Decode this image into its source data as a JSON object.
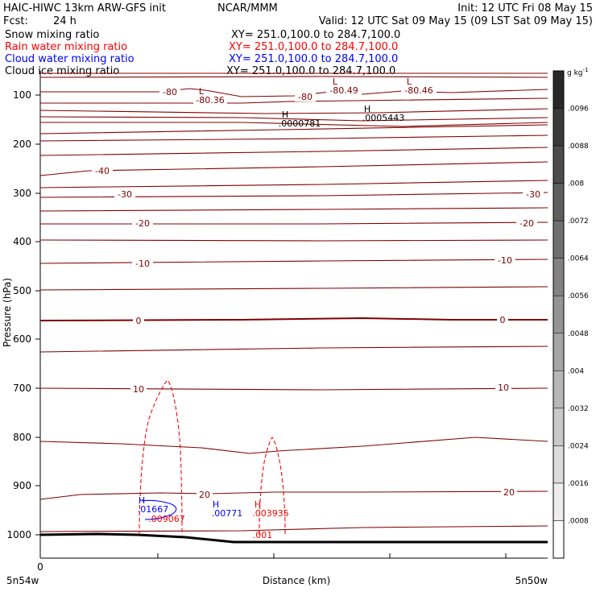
{
  "header": {
    "left_line1": "HAIC-HIWC 13km ARW-GFS init",
    "org": "NCAR/MMM",
    "init": "Init: 12 UTC Fri 08 May 15",
    "fcst_label": "Fcst:",
    "fcst_value": "24 h",
    "valid": "Valid: 12 UTC Sat 09 May 15 (09 LST Sat 09 May 15)",
    "fields": [
      {
        "label": "Snow mixing ratio",
        "xy": "XY= 251.0,100.0 to 284.7,100.0",
        "color": "#000000"
      },
      {
        "label": "Rain water mixing ratio",
        "xy": "XY= 251.0,100.0 to 284.7,100.0",
        "color": "#ff0000"
      },
      {
        "label": "Cloud water mixing ratio",
        "xy": "XY= 251.0,100.0 to 284.7,100.0",
        "color": "#0000ff"
      },
      {
        "label": "Cloud ice mixing ratio",
        "xy": "XY= 251.0,100.0 to 284.7,100.0",
        "color": "#000000"
      }
    ]
  },
  "chart_data": {
    "type": "contour-cross-section",
    "ylabel": "Pressure (hPa)",
    "xlabel": "Distance (km)",
    "y_ticks": [
      100,
      200,
      300,
      400,
      500,
      600,
      700,
      800,
      900,
      1000
    ],
    "ylim": [
      1050,
      80
    ],
    "x_tick_label": "0",
    "x_left_label": "5n54w",
    "x_right_label": "5n50w",
    "temperature_contours": [
      {
        "value": -80,
        "pressure": 100
      },
      {
        "value": -40,
        "pressure": 215
      },
      {
        "value": -30,
        "pressure": 300
      },
      {
        "value": -20,
        "pressure": 377
      },
      {
        "value": -10,
        "pressure": 455
      },
      {
        "value": 0,
        "pressure": 560
      },
      {
        "value": 10,
        "pressure": 680
      },
      {
        "value": 20,
        "pressure": 930
      }
    ],
    "temperature_labels": [
      "-80",
      "-80",
      "-80.36",
      "-80.49",
      "-80.46",
      "-40",
      "-30",
      "-30",
      "-20",
      "-20",
      "-10",
      "-10",
      "0",
      "0",
      "10",
      "10",
      "20",
      "20"
    ],
    "extrema": [
      {
        "type": "L",
        "value": "-80.36",
        "color": "#8b0000"
      },
      {
        "type": "L",
        "value": "-80.49",
        "color": "#8b0000"
      },
      {
        "type": "L",
        "value": "-80.46",
        "color": "#8b0000"
      },
      {
        "type": "H",
        "value": ".0000781",
        "color": "#000000"
      },
      {
        "type": "H",
        "value": ".0005443",
        "color": "#000000"
      },
      {
        "type": "H",
        "value": ".01667",
        "color": "#0000ff"
      },
      {
        "type": "H",
        "value": ".00771",
        "color": "#0000ff"
      },
      {
        "type": "H",
        "value": ".009067",
        "color": "#ff0000"
      },
      {
        "type": "H",
        "value": ".003935",
        "color": "#ff0000"
      }
    ],
    "rain_contour_label": ".001",
    "colorbar": {
      "unit": "g kg",
      "unit_exp": "-1",
      "labels": [
        ".0096",
        ".0088",
        ".008",
        ".0072",
        ".0064",
        ".0056",
        ".0048",
        ".004",
        ".0032",
        ".0024",
        ".0016",
        ".0008"
      ]
    },
    "colors": {
      "temperature": "#800000",
      "rain": "#ff0000",
      "cloud_water": "#0000ff",
      "terrain": "#000000"
    }
  }
}
